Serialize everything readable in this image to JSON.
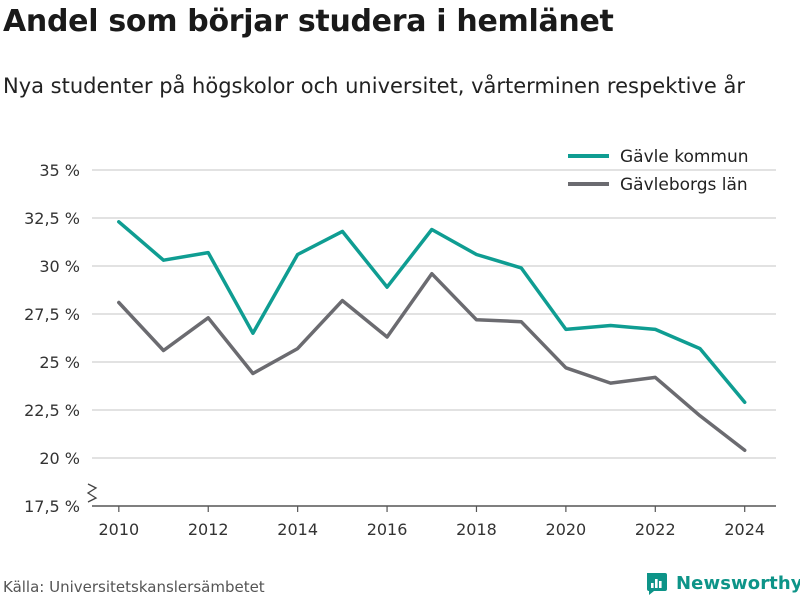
{
  "title": "Andel som börjar studera i hemlänet",
  "subtitle": "Nya studenter på högskolor och universitet, vårterminen respektive år",
  "source": "Källa: Universitetskanslersämbetet",
  "brand": {
    "name": "Newsworthy",
    "icon": "newsworthy-logo-icon",
    "color": "#0d9488"
  },
  "chart_data": {
    "type": "line",
    "x": [
      2010,
      2011,
      2012,
      2013,
      2014,
      2015,
      2016,
      2017,
      2018,
      2019,
      2020,
      2021,
      2022,
      2023,
      2024
    ],
    "series": [
      {
        "name": "Gävle kommun",
        "color": "#0f9d92",
        "values": [
          32.3,
          30.3,
          30.7,
          26.5,
          30.6,
          31.8,
          28.9,
          31.9,
          30.6,
          29.9,
          26.7,
          26.9,
          26.7,
          25.7,
          22.9
        ]
      },
      {
        "name": "Gävleborgs län",
        "color": "#6b6b70",
        "values": [
          28.1,
          25.6,
          27.3,
          24.4,
          25.7,
          28.2,
          26.3,
          29.6,
          27.2,
          27.1,
          24.7,
          23.9,
          24.2,
          22.2,
          20.4
        ]
      }
    ],
    "ylim": [
      17.5,
      35
    ],
    "yticks": [
      17.5,
      20,
      22.5,
      25,
      27.5,
      30,
      32.5,
      35
    ],
    "ytick_labels": [
      "17,5 %",
      "20 %",
      "22,5 %",
      "25 %",
      "27,5 %",
      "30 %",
      "32,5 %",
      "35 %"
    ],
    "xticks": [
      2010,
      2012,
      2014,
      2016,
      2018,
      2020,
      2022,
      2024
    ],
    "xtick_labels": [
      "2010",
      "2012",
      "2014",
      "2016",
      "2018",
      "2020",
      "2022",
      "2024"
    ],
    "axis_break": true,
    "grid": true,
    "legend_position": "top-right"
  }
}
